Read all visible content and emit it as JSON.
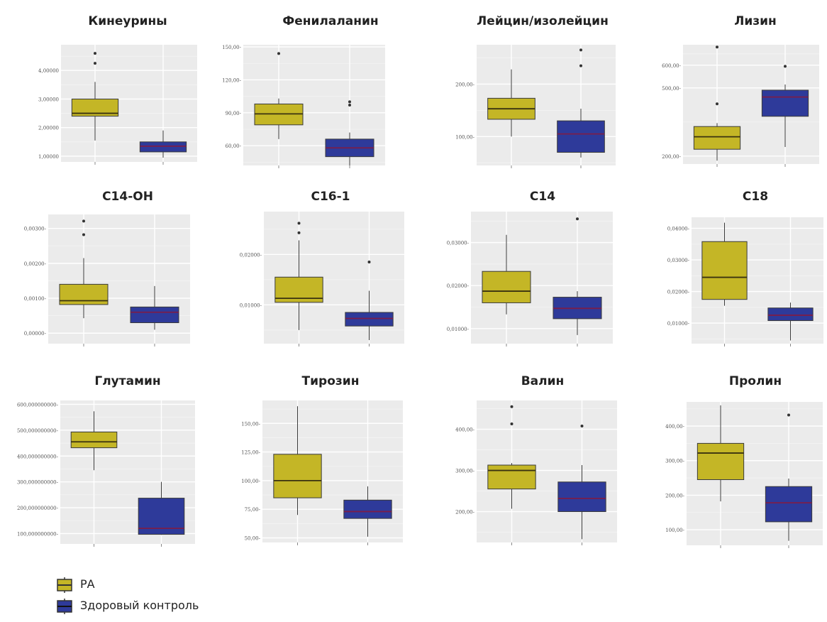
{
  "chart_data": [
    {
      "type": "box",
      "title": "Кинеурины",
      "yticks": [
        {
          "v": 1,
          "label": "1,00000"
        },
        {
          "v": 2,
          "label": "2,00000"
        },
        {
          "v": 3,
          "label": "3,00000"
        },
        {
          "v": 4,
          "label": "4,00000"
        }
      ],
      "ylim": [
        0.8,
        4.9
      ],
      "groups": [
        {
          "name": "РА",
          "min": 1.55,
          "q1": 2.4,
          "median": 2.5,
          "q3": 3.0,
          "max": 3.6,
          "outliers": [
            4.25,
            4.6
          ]
        },
        {
          "name": "Здоровый контроль",
          "min": 0.95,
          "q1": 1.15,
          "median": 1.35,
          "q3": 1.5,
          "max": 1.9,
          "outliers": []
        }
      ]
    },
    {
      "type": "box",
      "title": "Фенилаланин",
      "yticks": [
        {
          "v": 60,
          "label": "60,00-"
        },
        {
          "v": 90,
          "label": "90,00-"
        },
        {
          "v": 120,
          "label": "120,00-"
        },
        {
          "v": 150,
          "label": "150,00-"
        }
      ],
      "ylim": [
        42,
        152
      ],
      "groups": [
        {
          "name": "РА",
          "min": 66,
          "q1": 79,
          "median": 89,
          "q3": 98,
          "max": 103,
          "outliers": [
            144
          ]
        },
        {
          "name": "Здоровый контроль",
          "min": 42,
          "q1": 50,
          "median": 58,
          "q3": 66,
          "max": 72,
          "outliers": [
            100,
            97
          ]
        }
      ]
    },
    {
      "type": "box",
      "title": "Лейцин/изолейцин",
      "yticks": [
        {
          "v": 100,
          "label": "100,00-"
        },
        {
          "v": 200,
          "label": "200,00-"
        }
      ],
      "ylim": [
        45,
        275
      ],
      "groups": [
        {
          "name": "РА",
          "min": 100,
          "q1": 133,
          "median": 153,
          "q3": 173,
          "max": 228,
          "outliers": []
        },
        {
          "name": "Здоровый контроль",
          "min": 60,
          "q1": 70,
          "median": 105,
          "q3": 130,
          "max": 153,
          "outliers": [
            235,
            265
          ]
        }
      ]
    },
    {
      "type": "box",
      "title": "Лизин",
      "yticks": [
        {
          "v": 200,
          "label": "200,00-"
        },
        {
          "v": 500,
          "label": "500,00-"
        },
        {
          "v": 600,
          "label": "600,00-"
        }
      ],
      "ylim": [
        165,
        690
      ],
      "groups": [
        {
          "name": "РА",
          "min": 180,
          "q1": 230,
          "median": 285,
          "q3": 330,
          "max": 345,
          "outliers": [
            430,
            680
          ]
        },
        {
          "name": "Здоровый контроль",
          "min": 240,
          "q1": 375,
          "median": 460,
          "q3": 490,
          "max": 515,
          "outliers": [
            595
          ]
        }
      ]
    },
    {
      "type": "box",
      "title": "С14-ОН",
      "yticks": [
        {
          "v": 0.0,
          "label": "0,00000-"
        },
        {
          "v": 0.001,
          "label": "0,00100-"
        },
        {
          "v": 0.002,
          "label": "0,00200-"
        },
        {
          "v": 0.003,
          "label": "0,00300-"
        }
      ],
      "ylim": [
        -0.0003,
        0.0034
      ],
      "groups": [
        {
          "name": "РА",
          "min": 0.00043,
          "q1": 0.00082,
          "median": 0.00093,
          "q3": 0.0014,
          "max": 0.00215,
          "outliers": [
            0.00282,
            0.00321
          ]
        },
        {
          "name": "Здоровый контроль",
          "min": 0.0001,
          "q1": 0.0003,
          "median": 0.0006,
          "q3": 0.00075,
          "max": 0.00135,
          "outliers": []
        }
      ]
    },
    {
      "type": "box",
      "title": "С16-1",
      "yticks": [
        {
          "v": 0.01,
          "label": "0,01000-"
        },
        {
          "v": 0.02,
          "label": "0,02000-"
        }
      ],
      "ylim": [
        0.0023,
        0.0285
      ],
      "groups": [
        {
          "name": "РА",
          "min": 0.005,
          "q1": 0.0105,
          "median": 0.0113,
          "q3": 0.0155,
          "max": 0.0228,
          "outliers": [
            0.0243,
            0.0262
          ]
        },
        {
          "name": "Здоровый контроль",
          "min": 0.003,
          "q1": 0.0058,
          "median": 0.0073,
          "q3": 0.0085,
          "max": 0.0128,
          "outliers": [
            0.0185
          ]
        }
      ]
    },
    {
      "type": "box",
      "title": "С14",
      "yticks": [
        {
          "v": 0.01,
          "label": "0,01000-"
        },
        {
          "v": 0.02,
          "label": "0,02000-"
        },
        {
          "v": 0.03,
          "label": "0,03000-"
        }
      ],
      "ylim": [
        0.0065,
        0.0372
      ],
      "groups": [
        {
          "name": "РА",
          "min": 0.0133,
          "q1": 0.016,
          "median": 0.0187,
          "q3": 0.0233,
          "max": 0.0318,
          "outliers": []
        },
        {
          "name": "Здоровый контроль",
          "min": 0.0085,
          "q1": 0.0123,
          "median": 0.0147,
          "q3": 0.0173,
          "max": 0.0187,
          "outliers": [
            0.0355
          ]
        }
      ]
    },
    {
      "type": "box",
      "title": "С18",
      "yticks": [
        {
          "v": 0.01,
          "label": "0,01000-"
        },
        {
          "v": 0.02,
          "label": "0,02000-"
        },
        {
          "v": 0.03,
          "label": "0,03000-"
        },
        {
          "v": 0.04,
          "label": "0,04000-"
        }
      ],
      "ylim": [
        0.0035,
        0.0435
      ],
      "groups": [
        {
          "name": "РА",
          "min": 0.0155,
          "q1": 0.0175,
          "median": 0.0245,
          "q3": 0.0358,
          "max": 0.0418,
          "outliers": []
        },
        {
          "name": "Здоровый контроль",
          "min": 0.0045,
          "q1": 0.0108,
          "median": 0.0125,
          "q3": 0.0148,
          "max": 0.0165,
          "outliers": []
        }
      ]
    },
    {
      "type": "box",
      "title": "Глутамин",
      "yticks": [
        {
          "v": 100,
          "label": "100,000000000-"
        },
        {
          "v": 200,
          "label": "200,000000000-"
        },
        {
          "v": 300,
          "label": "300,000000000-"
        },
        {
          "v": 400,
          "label": "400,000000000-"
        },
        {
          "v": 500,
          "label": "500,000000000-"
        },
        {
          "v": 600,
          "label": "600,000000000-"
        }
      ],
      "ylim": [
        60,
        615
      ],
      "groups": [
        {
          "name": "РА",
          "min": 345,
          "q1": 432,
          "median": 455,
          "q3": 493,
          "max": 573,
          "outliers": []
        },
        {
          "name": "Здоровый контроль",
          "min": 95,
          "q1": 97,
          "median": 120,
          "q3": 237,
          "max": 300,
          "outliers": []
        }
      ]
    },
    {
      "type": "box",
      "title": "Тирозин",
      "yticks": [
        {
          "v": 50,
          "label": "50,00-"
        },
        {
          "v": 75,
          "label": "75,00-"
        },
        {
          "v": 100,
          "label": "100,00-"
        },
        {
          "v": 125,
          "label": "125,00-"
        },
        {
          "v": 150,
          "label": "150,00-"
        }
      ],
      "ylim": [
        46,
        170
      ],
      "groups": [
        {
          "name": "РА",
          "min": 70,
          "q1": 85,
          "median": 100,
          "q3": 123,
          "max": 165,
          "outliers": []
        },
        {
          "name": "Здоровый контроль",
          "min": 51,
          "q1": 67,
          "median": 73,
          "q3": 83,
          "max": 95,
          "outliers": []
        }
      ]
    },
    {
      "type": "box",
      "title": "Валин",
      "yticks": [
        {
          "v": 200,
          "label": "200,00-"
        },
        {
          "v": 300,
          "label": "300,00-"
        },
        {
          "v": 400,
          "label": "400,00-"
        }
      ],
      "ylim": [
        125,
        470
      ],
      "groups": [
        {
          "name": "РА",
          "min": 207,
          "q1": 255,
          "median": 300,
          "q3": 313,
          "max": 318,
          "outliers": [
            413,
            455
          ]
        },
        {
          "name": "Здоровый контроль",
          "min": 133,
          "q1": 200,
          "median": 232,
          "q3": 272,
          "max": 313,
          "outliers": [
            408
          ]
        }
      ]
    },
    {
      "type": "box",
      "title": "Пролин",
      "yticks": [
        {
          "v": 100,
          "label": "100,00-"
        },
        {
          "v": 200,
          "label": "200,00-"
        },
        {
          "v": 300,
          "label": "300,00-"
        },
        {
          "v": 400,
          "label": "400,00-"
        }
      ],
      "ylim": [
        55,
        470
      ],
      "groups": [
        {
          "name": "РА",
          "min": 182,
          "q1": 245,
          "median": 322,
          "q3": 350,
          "max": 460,
          "outliers": []
        },
        {
          "name": "Здоровый контроль",
          "min": 68,
          "q1": 123,
          "median": 178,
          "q3": 225,
          "max": 248,
          "outliers": [
            432
          ]
        }
      ]
    }
  ],
  "legend": [
    {
      "label": "РА",
      "color": "#c4b626"
    },
    {
      "label": "Здоровый контроль",
      "color": "#2e3a9a"
    }
  ],
  "colors": {
    "group1": "#c4b626",
    "group2": "#2e3a9a",
    "plot_bg": "#ebebeb",
    "grid": "#ffffff",
    "outline": "#3a3a3a"
  }
}
